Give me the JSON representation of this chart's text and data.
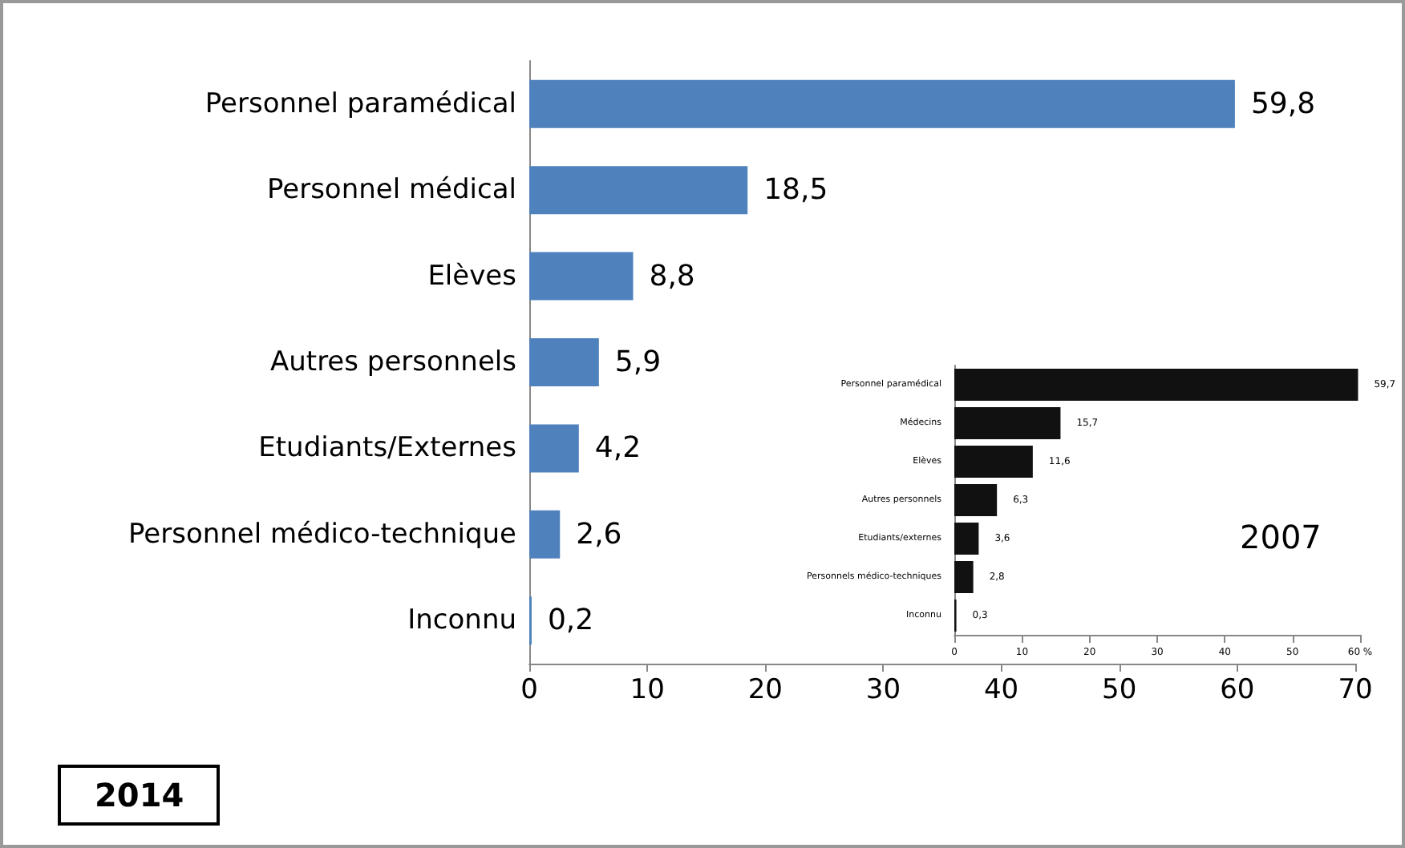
{
  "chart_data": [
    {
      "type": "bar",
      "orientation": "horizontal",
      "title": "2014",
      "categories": [
        "Personnel paramédical",
        "Personnel médical",
        "Elèves",
        "Autres personnels",
        "Etudiants/Externes",
        "Personnel médico-technique",
        "Inconnu"
      ],
      "values": [
        59.8,
        18.5,
        8.8,
        5.9,
        4.2,
        2.6,
        0.2
      ],
      "value_labels": [
        "59,8",
        "18,5",
        "8,8",
        "5,9",
        "4,2",
        "2,6",
        "0,2"
      ],
      "color": "#4f81bd",
      "xlim": [
        0,
        70
      ],
      "xticks": [
        0,
        10,
        20,
        30,
        40,
        50,
        60,
        70
      ]
    },
    {
      "type": "bar",
      "orientation": "horizontal",
      "title": "2007",
      "categories": [
        "Personnel paramédical",
        "Médecins",
        "Elèves",
        "Autres personnels",
        "Etudiants/externes",
        "Personnels médico-techniques",
        "Inconnu"
      ],
      "values": [
        59.7,
        15.7,
        11.6,
        6.3,
        3.6,
        2.8,
        0.3
      ],
      "value_labels": [
        "59,7",
        "15,7",
        "11,6",
        "6,3",
        "3,6",
        "2,8",
        "0,3"
      ],
      "color": "#111111",
      "xlim": [
        0,
        60
      ],
      "xticks": [
        0,
        10,
        20,
        30,
        40,
        50,
        {
          "value": 60,
          "label": "60 %"
        }
      ]
    }
  ]
}
